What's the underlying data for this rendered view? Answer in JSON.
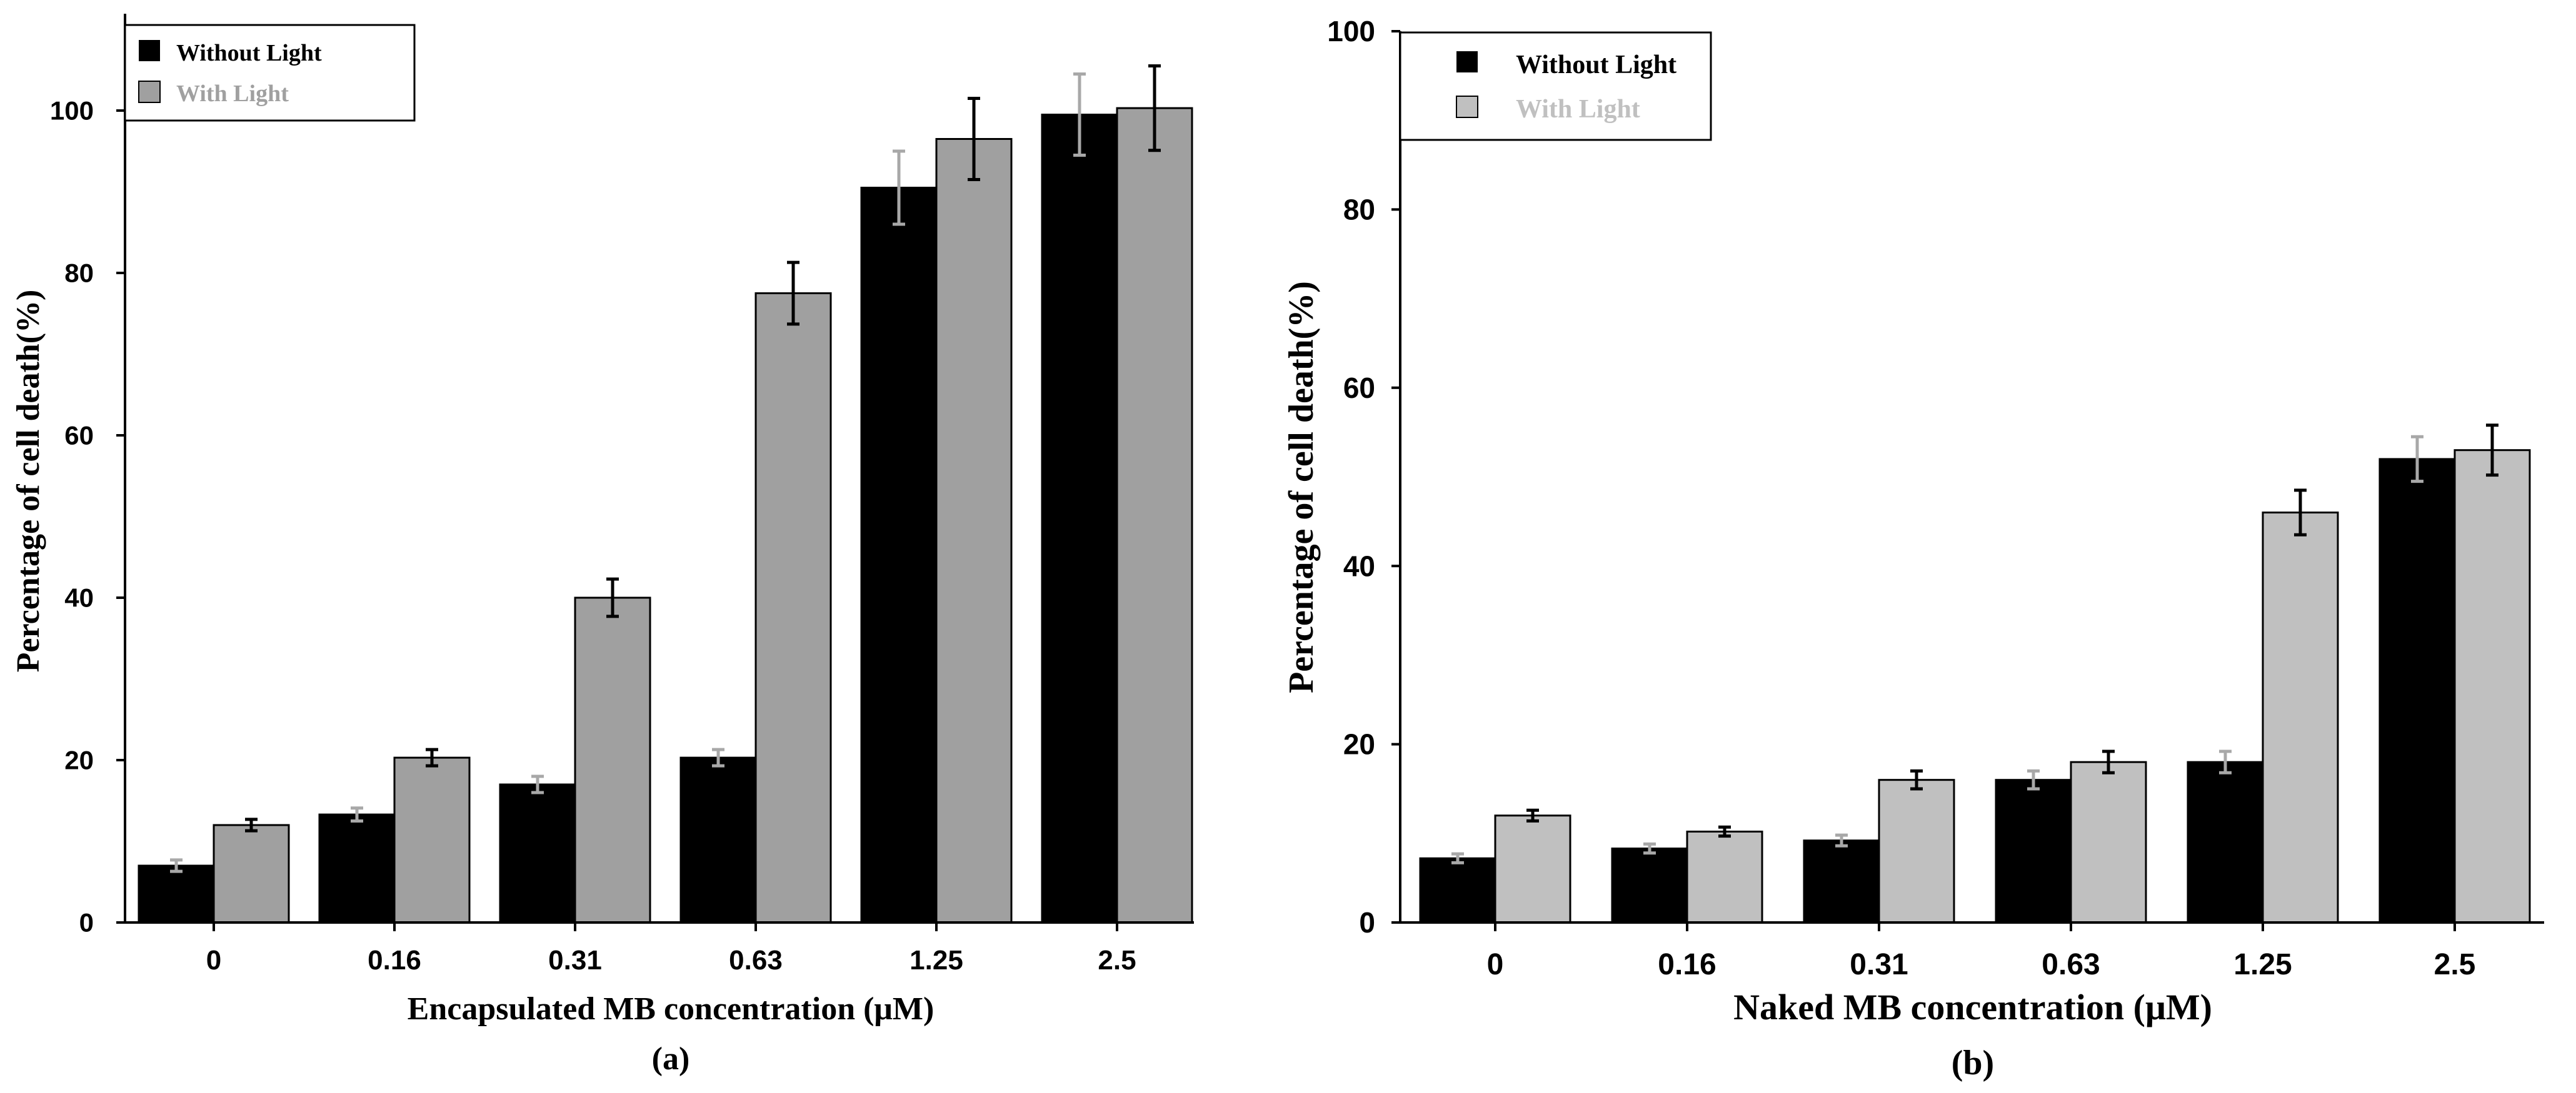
{
  "colors": {
    "without_light": "#000000",
    "with_light_a": "#a0a0a0",
    "with_light_b": "#c0c0c0",
    "axis": "#000000",
    "err_without": "#a8a8a8",
    "err_with": "#000000"
  },
  "chart_data": [
    {
      "type": "bar",
      "panel_label": "(a)",
      "xlabel": "Encapsulated MB concentration (μM)",
      "ylabel": "Percentage of cell death(%)",
      "categories": [
        "0",
        "0.16",
        "0.31",
        "0.63",
        "1.25",
        "2.5"
      ],
      "y_ticks": [
        "0",
        "20",
        "40",
        "60",
        "80",
        "100"
      ],
      "ylim": [
        0,
        110
      ],
      "legend_position": "top-left",
      "series": [
        {
          "name": "Without Light",
          "values": [
            7,
            13.3,
            17,
            20.3,
            90.5,
            99.5
          ],
          "errors": [
            0.7,
            0.8,
            1,
            1,
            4.5,
            5
          ]
        },
        {
          "name": "With Light",
          "values": [
            12,
            20.3,
            40,
            77.5,
            96.5,
            100.3
          ],
          "errors": [
            0.7,
            1,
            2.3,
            3.8,
            5,
            5.2
          ]
        }
      ]
    },
    {
      "type": "bar",
      "panel_label": "(b)",
      "xlabel": "Naked MB concentration (μM)",
      "ylabel": "Percentage of cell death(%)",
      "categories": [
        "0",
        "0.16",
        "0.31",
        "0.63",
        "1.25",
        "2.5"
      ],
      "y_ticks": [
        "0",
        "20",
        "40",
        "60",
        "80",
        "100"
      ],
      "ylim": [
        0,
        100
      ],
      "legend_position": "top-left",
      "series": [
        {
          "name": "Without Light",
          "values": [
            7.2,
            8.3,
            9.2,
            16,
            18,
            52
          ],
          "errors": [
            0.5,
            0.5,
            0.6,
            1,
            1.2,
            2.5
          ]
        },
        {
          "name": "With Light",
          "values": [
            12,
            10.2,
            16,
            18,
            46,
            53
          ],
          "errors": [
            0.6,
            0.5,
            1,
            1.2,
            2.5,
            2.8
          ]
        }
      ]
    }
  ]
}
